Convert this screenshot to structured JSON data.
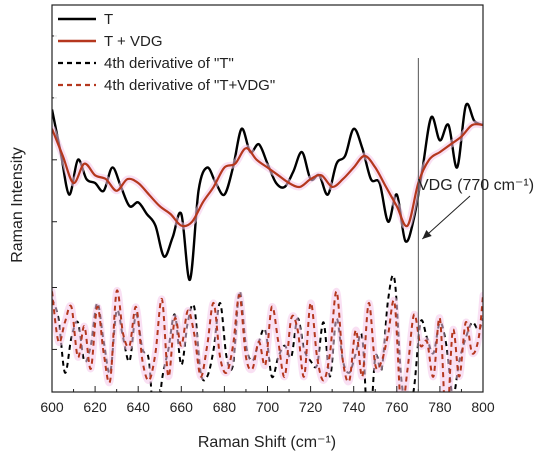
{
  "chart_data": {
    "type": "line",
    "xlabel": "Raman Shift (cm⁻¹)",
    "ylabel": "Raman Intensity",
    "xlim": [
      600,
      800
    ],
    "ylim": [
      0,
      10
    ],
    "x_ticks": [
      600,
      620,
      640,
      660,
      680,
      700,
      720,
      740,
      760,
      780,
      800
    ],
    "y_tick_labels_shown": false,
    "grid": false,
    "legend_position": "top-left",
    "vertical_marker_x": 770,
    "annotation": "VDG (770 cm⁻¹)",
    "series": [
      {
        "name": "T",
        "style": "solid",
        "color": "#000000",
        "x": [
          600,
          604,
          608,
          612,
          616,
          620,
          624,
          628,
          632,
          636,
          640,
          644,
          648,
          652,
          656,
          660,
          664,
          668,
          672,
          676,
          680,
          684,
          688,
          692,
          696,
          700,
          704,
          708,
          712,
          716,
          720,
          724,
          728,
          732,
          736,
          740,
          744,
          748,
          752,
          756,
          760,
          764,
          768,
          772,
          776,
          780,
          784,
          788,
          792,
          796,
          800
        ],
        "y": [
          7.3,
          6.2,
          5.1,
          6.0,
          5.5,
          5.4,
          5.2,
          5.8,
          5.3,
          4.8,
          4.9,
          4.6,
          4.3,
          3.5,
          4.0,
          4.6,
          2.9,
          5.2,
          5.8,
          5.4,
          5.1,
          5.8,
          6.8,
          6.2,
          6.4,
          5.9,
          5.4,
          5.3,
          5.7,
          6.2,
          5.5,
          5.6,
          5.1,
          5.9,
          6.1,
          6.8,
          6.3,
          5.5,
          5.4,
          4.4,
          5.1,
          3.9,
          4.5,
          5.8,
          7.1,
          6.5,
          6.9,
          5.8,
          7.4,
          7.0,
          6.9
        ]
      },
      {
        "name": "T + VDG",
        "style": "solid",
        "color": "#b5371e",
        "x": [
          600,
          605,
          610,
          615,
          620,
          625,
          630,
          635,
          640,
          645,
          650,
          655,
          660,
          665,
          670,
          675,
          680,
          685,
          690,
          695,
          700,
          705,
          710,
          715,
          720,
          725,
          730,
          735,
          740,
          745,
          750,
          755,
          760,
          765,
          770,
          775,
          780,
          785,
          790,
          795,
          800
        ],
        "y": [
          6.8,
          6.1,
          5.4,
          5.9,
          5.6,
          5.5,
          5.2,
          5.5,
          5.4,
          5.1,
          4.8,
          4.6,
          4.3,
          4.4,
          4.9,
          5.3,
          5.8,
          5.9,
          6.3,
          6.0,
          5.8,
          5.6,
          5.4,
          5.3,
          5.5,
          5.6,
          5.3,
          5.5,
          5.8,
          6.1,
          5.8,
          5.3,
          4.8,
          4.3,
          5.4,
          6.0,
          6.2,
          6.4,
          6.6,
          6.9,
          6.9
        ]
      },
      {
        "name": "4th derivative of \"T\"",
        "style": "dashed",
        "color": "#000000",
        "x": [
          600,
          603,
          606,
          609,
          612,
          615,
          618,
          621,
          624,
          627,
          630,
          633,
          636,
          639,
          642,
          645,
          648,
          651,
          654,
          657,
          660,
          663,
          666,
          669,
          672,
          675,
          678,
          681,
          684,
          687,
          690,
          693,
          696,
          699,
          702,
          705,
          708,
          711,
          714,
          717,
          720,
          723,
          726,
          729,
          732,
          735,
          738,
          741,
          744,
          747,
          750,
          753,
          756,
          759,
          762,
          765,
          768,
          771,
          774,
          777,
          780,
          783,
          786,
          789,
          792,
          795,
          798,
          800
        ],
        "y": [
          2.4,
          1.9,
          0.5,
          1.4,
          1.8,
          0.8,
          1.2,
          2.3,
          1.3,
          0.5,
          2.1,
          1.4,
          0.8,
          2.0,
          1.1,
          0.8,
          -1.3,
          0.3,
          1.1,
          2.0,
          0.7,
          1.8,
          2.2,
          0.5,
          0.4,
          1.1,
          2.3,
          0.9,
          0.7,
          2.6,
          1.2,
          0.8,
          1.3,
          1.6,
          0.4,
          0.9,
          1.2,
          0.9,
          1.9,
          1.1,
          0.8,
          0.7,
          1.8,
          0.4,
          1.9,
          0.8,
          0.5,
          1.0,
          1.4,
          -1.2,
          0.9,
          0.6,
          2.4,
          2.9,
          0.4,
          -0.6,
          0.1,
          1.8,
          1.4,
          1.0,
          1.8,
          1.2,
          -0.1,
          0.8,
          1.4,
          1.8,
          1.6,
          1.9
        ]
      },
      {
        "name": "4th derivative of \"T+VDG\"",
        "style": "dashed",
        "color": "#b5371e",
        "x": [
          600,
          603,
          606,
          609,
          612,
          615,
          618,
          621,
          624,
          627,
          630,
          633,
          636,
          639,
          642,
          645,
          648,
          651,
          654,
          657,
          660,
          663,
          666,
          669,
          672,
          675,
          678,
          681,
          684,
          687,
          690,
          693,
          696,
          699,
          702,
          705,
          708,
          711,
          714,
          717,
          720,
          723,
          726,
          729,
          732,
          735,
          738,
          741,
          744,
          747,
          750,
          753,
          756,
          759,
          762,
          765,
          768,
          771,
          774,
          777,
          780,
          783,
          786,
          789,
          792,
          795,
          798,
          800
        ],
        "y": [
          2.6,
          1.3,
          1.8,
          2.2,
          0.9,
          1.7,
          0.6,
          2.2,
          1.0,
          0.3,
          2.6,
          1.5,
          1.2,
          2.2,
          0.8,
          0.3,
          1.0,
          2.4,
          0.4,
          1.9,
          1.2,
          2.1,
          1.5,
          0.4,
          1.2,
          2.3,
          0.9,
          0.5,
          1.2,
          2.5,
          0.9,
          0.6,
          1.3,
          0.7,
          2.2,
          1.3,
          0.4,
          1.9,
          1.6,
          0.4,
          2.3,
          0.9,
          0.3,
          1.0,
          2.6,
          0.8,
          0.3,
          1.6,
          0.4,
          2.3,
          0.7,
          0.8,
          1.5,
          2.3,
          -0.4,
          0.6,
          2.0,
          1.2,
          1.3,
          0.4,
          1.9,
          -0.9,
          1.6,
          0.4,
          1.8,
          1.0,
          1.4,
          2.5
        ]
      }
    ]
  }
}
